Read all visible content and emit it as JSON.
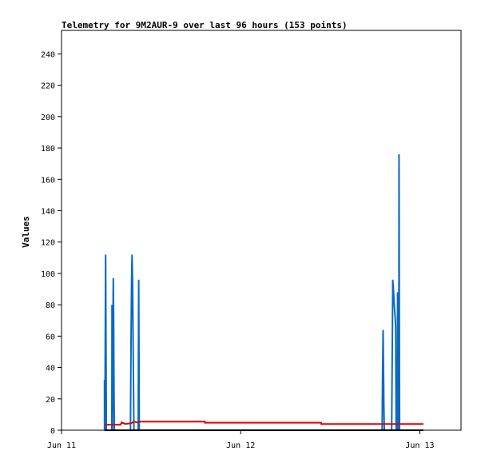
{
  "chart_data": {
    "type": "line",
    "title": "Telemetry for 9M2AUR-9 over last 96 hours (153 points)",
    "ylabel": "Values",
    "xlabel": "",
    "ylim": [
      0,
      255
    ],
    "xlim": [
      0,
      2.23
    ],
    "y_ticks": [
      0,
      20,
      40,
      60,
      80,
      100,
      120,
      140,
      160,
      180,
      200,
      220,
      240
    ],
    "x_ticks": [
      {
        "value": 0,
        "label": "Jun 11"
      },
      {
        "value": 1,
        "label": "Jun 12"
      },
      {
        "value": 2,
        "label": "Jun 13"
      }
    ],
    "series": [
      {
        "color": "#0a6ac0",
        "kind": "spikes",
        "points": [
          [
            0.24,
            0
          ],
          [
            0.24,
            32
          ],
          [
            0.242,
            0
          ],
          [
            0.246,
            112
          ],
          [
            0.25,
            0
          ],
          [
            0.281,
            0
          ],
          [
            0.282,
            80
          ],
          [
            0.284,
            0
          ],
          [
            0.289,
            97
          ],
          [
            0.291,
            72
          ],
          [
            0.293,
            24
          ],
          [
            0.295,
            0
          ],
          [
            0.385,
            0
          ],
          [
            0.386,
            18
          ],
          [
            0.388,
            56
          ],
          [
            0.391,
            95
          ],
          [
            0.394,
            112
          ],
          [
            0.397,
            92
          ],
          [
            0.4,
            51
          ],
          [
            0.404,
            0
          ],
          [
            0.428,
            0
          ],
          [
            0.431,
            96
          ],
          [
            0.434,
            0
          ],
          [
            1.79,
            0
          ],
          [
            1.792,
            33
          ],
          [
            1.795,
            64
          ],
          [
            1.799,
            17
          ],
          [
            1.802,
            0
          ],
          [
            1.843,
            0
          ],
          [
            1.846,
            48
          ],
          [
            1.849,
            96
          ],
          [
            1.853,
            89
          ],
          [
            1.857,
            80
          ],
          [
            1.862,
            72
          ],
          [
            1.865,
            66
          ],
          [
            1.868,
            0
          ],
          [
            1.874,
            0
          ],
          [
            1.876,
            88
          ],
          [
            1.879,
            0
          ],
          [
            1.883,
            0
          ],
          [
            1.884,
            176
          ],
          [
            1.887,
            0
          ]
        ]
      },
      {
        "color": "#e00000",
        "kind": "line",
        "points": [
          [
            0.24,
            3.5
          ],
          [
            0.33,
            3.5
          ],
          [
            0.335,
            5
          ],
          [
            0.355,
            4
          ],
          [
            0.39,
            4.5
          ],
          [
            0.405,
            5.5
          ],
          [
            0.42,
            5
          ],
          [
            0.445,
            5.5
          ],
          [
            0.8,
            5.5
          ],
          [
            0.8,
            4.8
          ],
          [
            1.45,
            4.8
          ],
          [
            1.45,
            4
          ],
          [
            2.02,
            4
          ]
        ]
      },
      {
        "color": "#000000",
        "kind": "line",
        "points": [
          [
            0.24,
            0
          ],
          [
            2.02,
            0
          ]
        ]
      }
    ]
  }
}
